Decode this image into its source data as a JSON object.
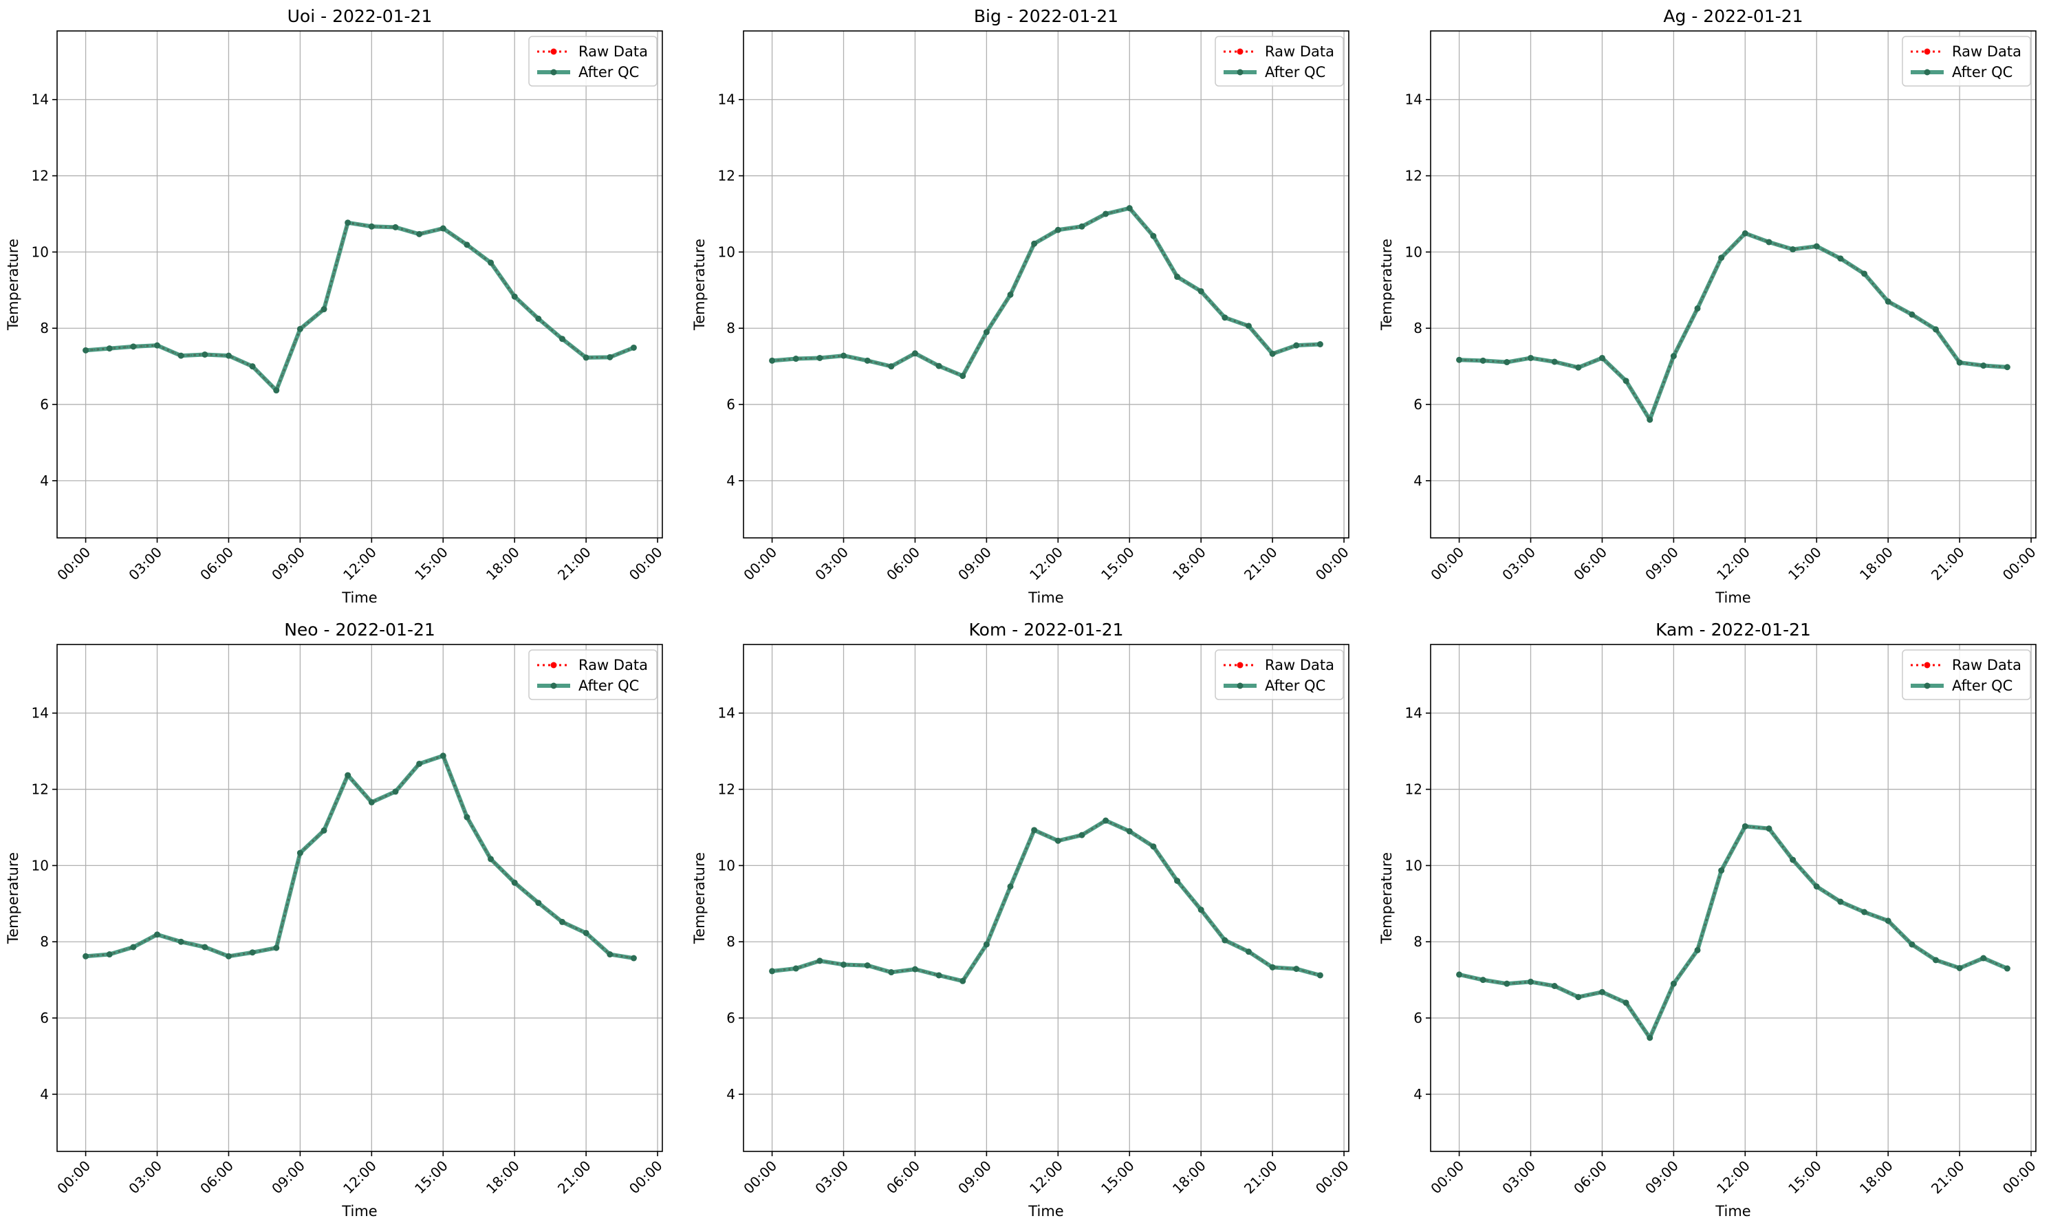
{
  "chart_data": [
    {
      "type": "line",
      "title": "Uoi - 2022-01-21",
      "xlabel": "Time",
      "ylabel": "Temperature",
      "ylim": [
        2.5,
        15.8
      ],
      "yticks": [
        4,
        6,
        8,
        10,
        12,
        14
      ],
      "xticks": [
        "00:00",
        "03:00",
        "06:00",
        "09:00",
        "12:00",
        "15:00",
        "18:00",
        "21:00",
        "00:00"
      ],
      "xlim_hours": [
        -1.2,
        24.2
      ],
      "grid": true,
      "legend_position": "top-right",
      "x_hours": [
        0,
        1,
        2,
        3,
        4,
        5,
        6,
        7,
        8,
        9,
        10,
        11,
        12,
        13,
        14,
        15,
        16,
        17,
        18,
        19,
        20,
        21,
        22,
        23
      ],
      "series": [
        {
          "name": "Raw Data",
          "values": [
            7.42,
            7.47,
            7.52,
            7.55,
            7.28,
            7.31,
            7.28,
            7.0,
            6.37,
            7.98,
            8.5,
            10.77,
            10.67,
            10.65,
            10.47,
            10.62,
            10.19,
            9.72,
            8.83,
            8.25,
            7.72,
            7.23,
            7.24,
            7.49
          ]
        },
        {
          "name": "After QC",
          "values": [
            7.42,
            7.47,
            7.52,
            7.55,
            7.28,
            7.31,
            7.28,
            7.0,
            6.37,
            7.98,
            8.5,
            10.77,
            10.67,
            10.65,
            10.47,
            10.62,
            10.19,
            9.72,
            8.83,
            8.25,
            7.72,
            7.23,
            7.24,
            7.49
          ]
        }
      ]
    },
    {
      "type": "line",
      "title": "Big - 2022-01-21",
      "xlabel": "Time",
      "ylabel": "Temperature",
      "ylim": [
        2.5,
        15.8
      ],
      "yticks": [
        4,
        6,
        8,
        10,
        12,
        14
      ],
      "xticks": [
        "00:00",
        "03:00",
        "06:00",
        "09:00",
        "12:00",
        "15:00",
        "18:00",
        "21:00",
        "00:00"
      ],
      "xlim_hours": [
        -1.2,
        24.2
      ],
      "grid": true,
      "legend_position": "top-right",
      "x_hours": [
        0,
        1,
        2,
        3,
        4,
        5,
        6,
        7,
        8,
        9,
        10,
        11,
        12,
        13,
        14,
        15,
        16,
        17,
        18,
        19,
        20,
        21,
        22,
        23
      ],
      "series": [
        {
          "name": "Raw Data",
          "values": [
            7.15,
            7.2,
            7.22,
            7.28,
            7.15,
            7.0,
            7.34,
            7.01,
            6.75,
            7.9,
            8.88,
            10.22,
            10.58,
            10.67,
            11.0,
            11.15,
            10.42,
            9.35,
            8.97,
            8.28,
            8.06,
            7.33,
            7.55,
            7.58
          ]
        },
        {
          "name": "After QC",
          "values": [
            7.15,
            7.2,
            7.22,
            7.28,
            7.15,
            7.0,
            7.34,
            7.01,
            6.75,
            7.9,
            8.88,
            10.22,
            10.58,
            10.67,
            11.0,
            11.15,
            10.42,
            9.35,
            8.97,
            8.28,
            8.06,
            7.33,
            7.55,
            7.58
          ]
        }
      ]
    },
    {
      "type": "line",
      "title": "Ag - 2022-01-21",
      "xlabel": "Time",
      "ylabel": "Temperature",
      "ylim": [
        2.5,
        15.8
      ],
      "yticks": [
        4,
        6,
        8,
        10,
        12,
        14
      ],
      "xticks": [
        "00:00",
        "03:00",
        "06:00",
        "09:00",
        "12:00",
        "15:00",
        "18:00",
        "21:00",
        "00:00"
      ],
      "xlim_hours": [
        -1.2,
        24.2
      ],
      "grid": true,
      "legend_position": "top-right",
      "x_hours": [
        0,
        1,
        2,
        3,
        4,
        5,
        6,
        7,
        8,
        9,
        10,
        11,
        12,
        13,
        14,
        15,
        16,
        17,
        18,
        19,
        20,
        21,
        22,
        23
      ],
      "series": [
        {
          "name": "Raw Data",
          "values": [
            7.17,
            7.15,
            7.11,
            7.22,
            7.12,
            6.97,
            7.22,
            6.62,
            5.6,
            7.27,
            8.52,
            9.85,
            10.49,
            10.26,
            10.07,
            10.15,
            9.83,
            9.43,
            8.7,
            8.36,
            7.97,
            7.1,
            7.02,
            6.98
          ]
        },
        {
          "name": "After QC",
          "values": [
            7.17,
            7.15,
            7.11,
            7.22,
            7.12,
            6.97,
            7.22,
            6.62,
            5.6,
            7.27,
            8.52,
            9.85,
            10.49,
            10.26,
            10.07,
            10.15,
            9.83,
            9.43,
            8.7,
            8.36,
            7.97,
            7.1,
            7.02,
            6.98
          ]
        }
      ]
    },
    {
      "type": "line",
      "title": "Neo - 2022-01-21",
      "xlabel": "Time",
      "ylabel": "Temperature",
      "ylim": [
        2.5,
        15.8
      ],
      "yticks": [
        4,
        6,
        8,
        10,
        12,
        14
      ],
      "xticks": [
        "00:00",
        "03:00",
        "06:00",
        "09:00",
        "12:00",
        "15:00",
        "18:00",
        "21:00",
        "00:00"
      ],
      "xlim_hours": [
        -1.2,
        24.2
      ],
      "grid": true,
      "legend_position": "top-right",
      "x_hours": [
        0,
        1,
        2,
        3,
        4,
        5,
        6,
        7,
        8,
        9,
        10,
        11,
        12,
        13,
        14,
        15,
        16,
        17,
        18,
        19,
        20,
        21,
        22,
        23
      ],
      "series": [
        {
          "name": "Raw Data",
          "values": [
            7.62,
            7.67,
            7.86,
            8.19,
            8.0,
            7.86,
            7.62,
            7.72,
            7.84,
            10.33,
            10.92,
            12.37,
            11.66,
            11.94,
            12.67,
            12.88,
            11.27,
            10.17,
            9.55,
            9.02,
            8.52,
            8.23,
            7.67,
            7.57
          ]
        },
        {
          "name": "After QC",
          "values": [
            7.62,
            7.67,
            7.86,
            8.19,
            8.0,
            7.86,
            7.62,
            7.72,
            7.84,
            10.33,
            10.92,
            12.37,
            11.66,
            11.94,
            12.67,
            12.88,
            11.27,
            10.17,
            9.55,
            9.02,
            8.52,
            8.23,
            7.67,
            7.57
          ]
        }
      ]
    },
    {
      "type": "line",
      "title": "Kom - 2022-01-21",
      "xlabel": "Time",
      "ylabel": "Temperature",
      "ylim": [
        2.5,
        15.8
      ],
      "yticks": [
        4,
        6,
        8,
        10,
        12,
        14
      ],
      "xticks": [
        "00:00",
        "03:00",
        "06:00",
        "09:00",
        "12:00",
        "15:00",
        "18:00",
        "21:00",
        "00:00"
      ],
      "xlim_hours": [
        -1.2,
        24.2
      ],
      "grid": true,
      "legend_position": "top-right",
      "x_hours": [
        0,
        1,
        2,
        3,
        4,
        5,
        6,
        7,
        8,
        9,
        10,
        11,
        12,
        13,
        14,
        15,
        16,
        17,
        18,
        19,
        20,
        21,
        22,
        23
      ],
      "series": [
        {
          "name": "Raw Data",
          "values": [
            7.23,
            7.3,
            7.5,
            7.4,
            7.38,
            7.2,
            7.28,
            7.12,
            6.97,
            7.93,
            9.45,
            10.93,
            10.65,
            10.8,
            11.18,
            10.9,
            10.5,
            9.6,
            8.84,
            8.04,
            7.74,
            7.33,
            7.29,
            7.12
          ]
        },
        {
          "name": "After QC",
          "values": [
            7.23,
            7.3,
            7.5,
            7.4,
            7.38,
            7.2,
            7.28,
            7.12,
            6.97,
            7.93,
            9.45,
            10.93,
            10.65,
            10.8,
            11.18,
            10.9,
            10.5,
            9.6,
            8.84,
            8.04,
            7.74,
            7.33,
            7.29,
            7.12
          ]
        }
      ]
    },
    {
      "type": "line",
      "title": "Kam - 2022-01-21",
      "xlabel": "Time",
      "ylabel": "Temperature",
      "ylim": [
        2.5,
        15.8
      ],
      "yticks": [
        4,
        6,
        8,
        10,
        12,
        14
      ],
      "xticks": [
        "00:00",
        "03:00",
        "06:00",
        "09:00",
        "12:00",
        "15:00",
        "18:00",
        "21:00",
        "00:00"
      ],
      "xlim_hours": [
        -1.2,
        24.2
      ],
      "grid": true,
      "legend_position": "top-right",
      "x_hours": [
        0,
        1,
        2,
        3,
        4,
        5,
        6,
        7,
        8,
        9,
        10,
        11,
        12,
        13,
        14,
        15,
        16,
        17,
        18,
        19,
        20,
        21,
        22,
        23
      ],
      "series": [
        {
          "name": "Raw Data",
          "values": [
            7.14,
            7.0,
            6.9,
            6.95,
            6.84,
            6.55,
            6.68,
            6.4,
            5.48,
            6.9,
            7.78,
            9.87,
            11.03,
            10.97,
            10.15,
            9.45,
            9.05,
            8.78,
            8.55,
            7.93,
            7.52,
            7.31,
            7.57,
            7.3
          ]
        },
        {
          "name": "After QC",
          "values": [
            7.14,
            7.0,
            6.9,
            6.95,
            6.84,
            6.55,
            6.68,
            6.4,
            5.48,
            6.9,
            7.78,
            9.87,
            11.03,
            10.97,
            10.15,
            9.45,
            9.05,
            8.78,
            8.55,
            7.93,
            7.52,
            7.31,
            7.57,
            7.3
          ]
        }
      ]
    }
  ],
  "colors": {
    "raw_data": "#ff0000",
    "after_qc": "#2e8b6e",
    "after_qc_marker": "#2b6e55",
    "grid": "#b0b0b0",
    "axes": "#000000",
    "legend_border": "#cccccc"
  }
}
